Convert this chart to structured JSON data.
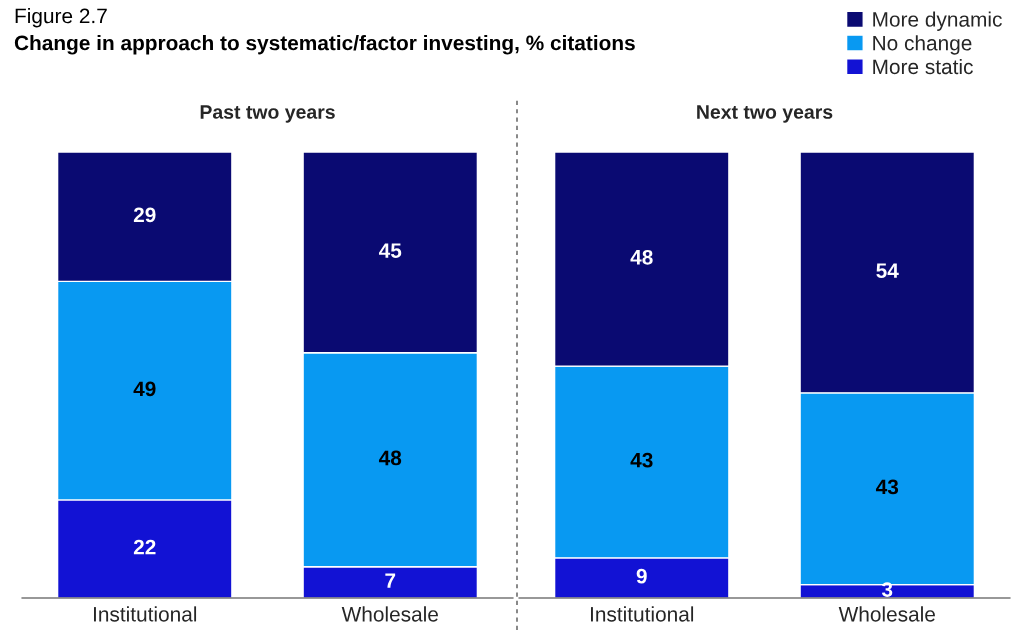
{
  "chart_data": [
    {
      "type": "bar",
      "title": "Past two years",
      "annotations": [
        "Figure 2.7",
        "Change in approach to systematic/factor investing, % citations"
      ],
      "categories": [
        "Institutional",
        "Wholesale"
      ],
      "stacked": true,
      "data_labels": true,
      "series": [
        {
          "color": "#1212d4",
          "values": [
            22,
            7
          ]
        },
        {
          "color": "#0899f2",
          "values": [
            49,
            48
          ]
        },
        {
          "color": "#0a0a72",
          "values": [
            29,
            45
          ]
        }
      ]
    },
    {
      "type": "bar",
      "title": "Next two years",
      "categories": [
        "Institutional",
        "Wholesale"
      ],
      "stacked": true,
      "data_labels": true,
      "legend": "top right",
      "series": [
        {
          "name": "More static",
          "color": "#1212d4",
          "values": [
            9,
            3
          ]
        },
        {
          "name": "No change",
          "color": "#0899f2",
          "values": [
            43,
            43
          ]
        },
        {
          "name": "More dynamic",
          "color": "#0a0a72",
          "values": [
            48,
            54
          ]
        }
      ]
    }
  ]
}
